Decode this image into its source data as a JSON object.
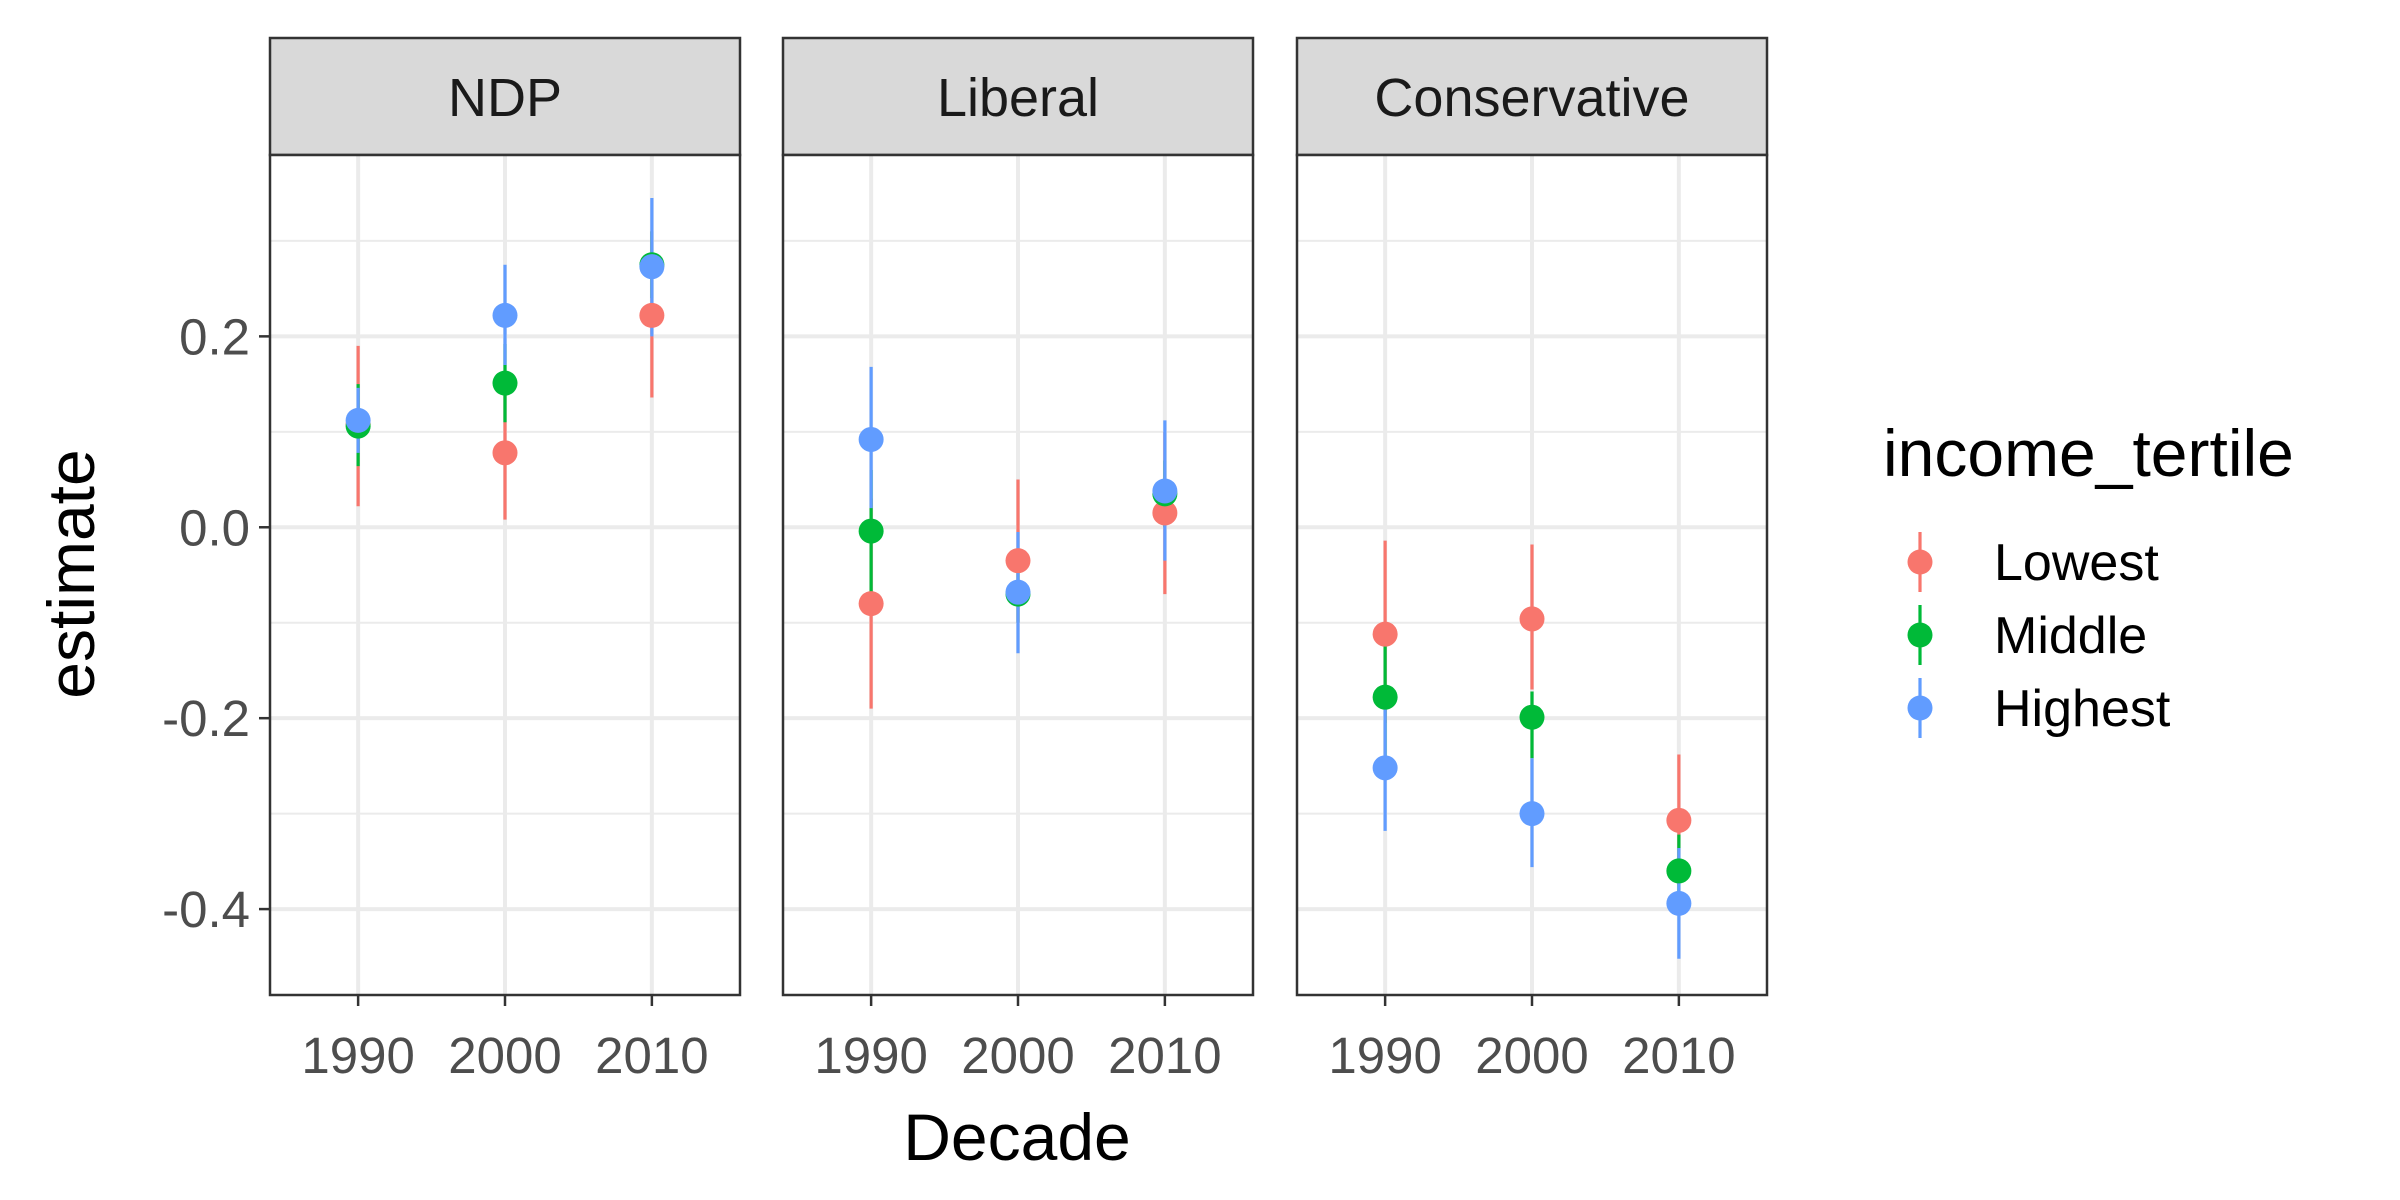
{
  "chart_data": {
    "type": "scatter",
    "subtype": "pointrange, faceted by party",
    "xlabel": "Decade",
    "ylabel": "estimate",
    "x_categories": [
      "1990",
      "2000",
      "2010"
    ],
    "ylim": [
      -0.49,
      0.39
    ],
    "y_ticks": [
      0.2,
      0.0,
      -0.2,
      -0.4
    ],
    "y_tick_labels": [
      "0.2",
      "0.0",
      "-0.2",
      "-0.4"
    ],
    "y_minor_ticks": [
      0.3,
      0.1,
      -0.1,
      -0.3
    ],
    "grid": true,
    "legend": {
      "title": "income_tertile",
      "placement": "right",
      "entries": [
        {
          "label": "Lowest",
          "color": "#F8766D"
        },
        {
          "label": "Middle",
          "color": "#00BA38"
        },
        {
          "label": "Highest",
          "color": "#619CFF"
        }
      ]
    },
    "panels": [
      {
        "label": "NDP",
        "series": [
          {
            "name": "Lowest",
            "color": "#F8766D",
            "points": [
              {
                "x": "1990",
                "y": 0.108,
                "lo": 0.022,
                "hi": 0.19
              },
              {
                "x": "2000",
                "y": 0.078,
                "lo": 0.008,
                "hi": 0.148
              },
              {
                "x": "2010",
                "y": 0.222,
                "lo": 0.136,
                "hi": 0.31
              }
            ]
          },
          {
            "name": "Middle",
            "color": "#00BA38",
            "points": [
              {
                "x": "1990",
                "y": 0.106,
                "lo": 0.064,
                "hi": 0.15
              },
              {
                "x": "2000",
                "y": 0.151,
                "lo": 0.11,
                "hi": 0.192
              },
              {
                "x": "2010",
                "y": 0.275,
                "lo": 0.24,
                "hi": 0.31
              }
            ]
          },
          {
            "name": "Highest",
            "color": "#619CFF",
            "points": [
              {
                "x": "1990",
                "y": 0.112,
                "lo": 0.078,
                "hi": 0.146
              },
              {
                "x": "2000",
                "y": 0.222,
                "lo": 0.17,
                "hi": 0.275
              },
              {
                "x": "2010",
                "y": 0.273,
                "lo": 0.2,
                "hi": 0.345
              }
            ]
          }
        ]
      },
      {
        "label": "Liberal",
        "series": [
          {
            "name": "Lowest",
            "color": "#F8766D",
            "points": [
              {
                "x": "1990",
                "y": -0.08,
                "lo": -0.19,
                "hi": 0.03
              },
              {
                "x": "2000",
                "y": -0.035,
                "lo": -0.1,
                "hi": 0.05
              },
              {
                "x": "2010",
                "y": 0.015,
                "lo": -0.07,
                "hi": 0.1
              }
            ]
          },
          {
            "name": "Middle",
            "color": "#00BA38",
            "points": [
              {
                "x": "1990",
                "y": -0.004,
                "lo": -0.07,
                "hi": 0.06
              },
              {
                "x": "2000",
                "y": -0.07,
                "lo": -0.1,
                "hi": -0.04
              },
              {
                "x": "2010",
                "y": 0.035,
                "lo": 0.0,
                "hi": 0.07
              }
            ]
          },
          {
            "name": "Highest",
            "color": "#619CFF",
            "points": [
              {
                "x": "1990",
                "y": 0.092,
                "lo": 0.02,
                "hi": 0.168
              },
              {
                "x": "2000",
                "y": -0.068,
                "lo": -0.132,
                "hi": -0.005
              },
              {
                "x": "2010",
                "y": 0.038,
                "lo": -0.035,
                "hi": 0.112
              }
            ]
          }
        ]
      },
      {
        "label": "Conservative",
        "series": [
          {
            "name": "Lowest",
            "color": "#F8766D",
            "points": [
              {
                "x": "1990",
                "y": -0.112,
                "lo": -0.205,
                "hi": -0.014
              },
              {
                "x": "2000",
                "y": -0.096,
                "lo": -0.17,
                "hi": -0.018
              },
              {
                "x": "2010",
                "y": -0.307,
                "lo": -0.375,
                "hi": -0.238
              }
            ]
          },
          {
            "name": "Middle",
            "color": "#00BA38",
            "points": [
              {
                "x": "1990",
                "y": -0.178,
                "lo": -0.24,
                "hi": -0.114
              },
              {
                "x": "2000",
                "y": -0.199,
                "lo": -0.242,
                "hi": -0.172
              },
              {
                "x": "2010",
                "y": -0.36,
                "lo": -0.398,
                "hi": -0.322
              }
            ]
          },
          {
            "name": "Highest",
            "color": "#619CFF",
            "points": [
              {
                "x": "1990",
                "y": -0.252,
                "lo": -0.318,
                "hi": -0.186
              },
              {
                "x": "2000",
                "y": -0.3,
                "lo": -0.356,
                "hi": -0.242
              },
              {
                "x": "2010",
                "y": -0.394,
                "lo": -0.452,
                "hi": -0.336
              }
            ]
          }
        ]
      }
    ]
  }
}
